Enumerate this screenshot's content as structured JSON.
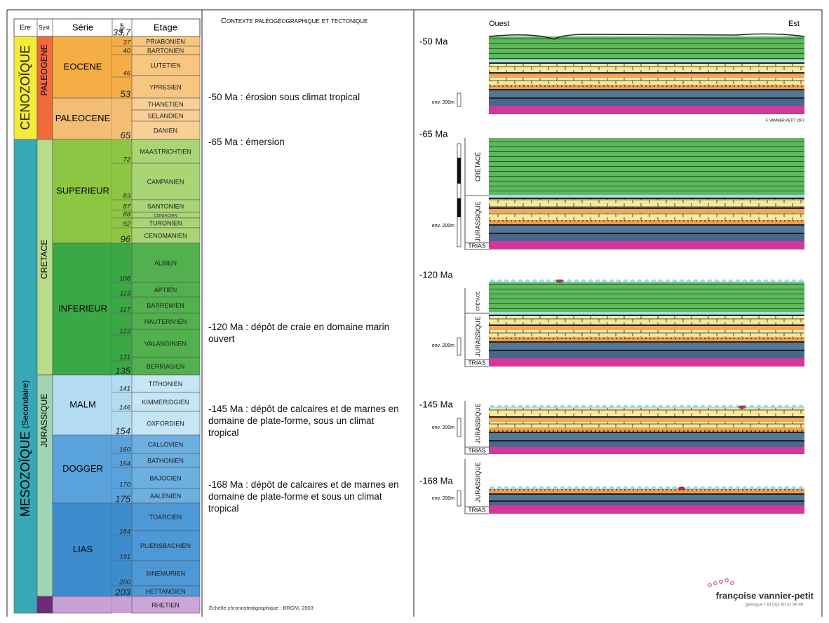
{
  "header": {
    "era": "Ere",
    "system": "Syst.",
    "series": "Série",
    "age": "Age",
    "stage": "Etage"
  },
  "eras": [
    {
      "label": "CENOZOÏQUE"
    },
    {
      "label": "MESOZOÏQUE",
      "note": "(Secondaire)"
    }
  ],
  "systems": [
    "PALEOGENE",
    "CRETACE",
    "JURASSIQUE"
  ],
  "series": [
    "EOCENE",
    "PALEOCENE",
    "SUPERIEUR",
    "INFERIEUR",
    "MALM",
    "DOGGER",
    "LIAS"
  ],
  "stages": [
    "PRIABONIEN",
    "BARTONIEN",
    "LUTETIEN",
    "YPRESIEN",
    "THANETIEN",
    "SELANDIEN",
    "DANIEN",
    "MAASTRICHTIEN",
    "CAMPANIEN",
    "SANTONIEN",
    "CONIACIEN",
    "TURONIEN",
    "CENOMANIEN",
    "ALBIEN",
    "APTIEN",
    "BARREMIEN",
    "HAUTERIVIEN",
    "VALANGINIEN",
    "BERRIASIEN",
    "TITHONIEN",
    "KIMMERIDGIEN",
    "OXFORDIEN",
    "CALLOVIEN",
    "BATHONIEN",
    "BAJOCIEN",
    "AALENIEN",
    "TOARCIEN",
    "PLIENSBACHIEN",
    "SINEMURIEN",
    "HETTANGIEN",
    "RHETIEN"
  ],
  "ages": [
    "33,7",
    37,
    40,
    46,
    53,
    65,
    72,
    83,
    87,
    88,
    92,
    96,
    108,
    113,
    117,
    123,
    131,
    135,
    141,
    146,
    154,
    160,
    164,
    170,
    175,
    184,
    191,
    200,
    203
  ],
  "context_title": "Contexte paléogéographique et tectonique",
  "events": [
    "-50 Ma : érosion sous climat tropical",
    "-65 Ma : émersion",
    "-120 Ma :  dépôt de craie en domaine marin ouvert",
    "-145 Ma : dépôt de calcaires et de marnes en domaine de plate-forme, sous un climat tropical",
    "-168 Ma : dépôt de calcaires et de marnes en domaine de plate-forme et sous un climat tropical"
  ],
  "source": "Échelle chronostratigraphique : BRGM, 2003",
  "sections": {
    "west": "Ouest",
    "east": "Est",
    "credit": "F. VANNIER-PETIT 2007",
    "panels": [
      {
        "label": "-50 Ma",
        "scale": "env. 200m",
        "units": []
      },
      {
        "label": "-65 Ma",
        "scale": "env. 200m",
        "units": [
          "CRÉTACÉ",
          "JURASSIQUE",
          "TRIAS"
        ]
      },
      {
        "label": "-120 Ma",
        "scale": "env. 200m",
        "units": [
          "CRÉTACÉ",
          "JURASSIQUE",
          "TRIAS"
        ]
      },
      {
        "label": "-145 Ma",
        "scale": "env. 200m",
        "units": [
          "JURASSIQUE",
          "TRIAS"
        ]
      },
      {
        "label": "-168 Ma",
        "scale": "env. 200m",
        "units": [
          "JURASSIQUE",
          "TRIAS"
        ]
      }
    ]
  },
  "brand": {
    "name": "françoise vannier-petit",
    "contact": "géologue • 33 (0)3 80 42 96 99"
  }
}
